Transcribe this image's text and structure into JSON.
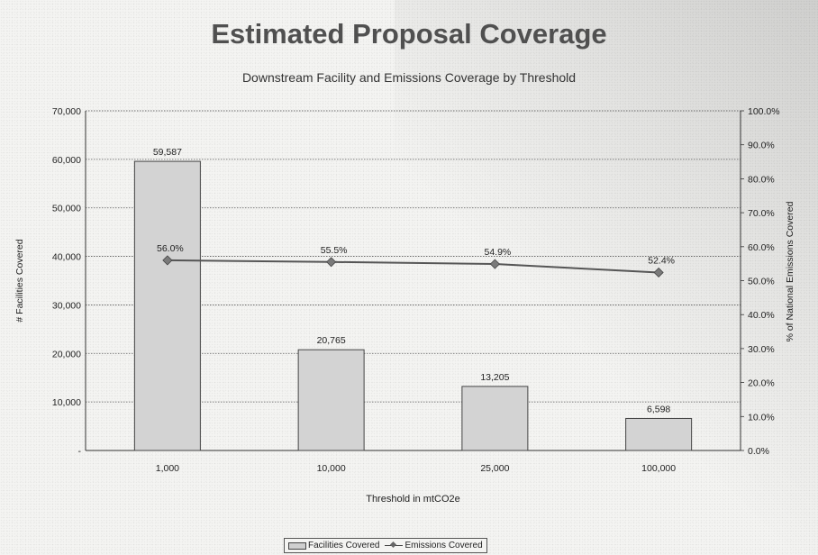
{
  "chart_data": {
    "type": "bar",
    "title": "Estimated Proposal Coverage",
    "subtitle": "Downstream Facility and Emissions Coverage by Threshold",
    "xlabel": "Threshold in mtCO2e",
    "ylabel": "# Facilities Covered",
    "y2label": "% of National Emissions Covered",
    "categories": [
      "1,000",
      "10,000",
      "25,000",
      "100,000"
    ],
    "ylim": [
      0,
      70000
    ],
    "y2lim": [
      0,
      100
    ],
    "yticks": [
      "-",
      "10,000",
      "20,000",
      "30,000",
      "40,000",
      "50,000",
      "60,000",
      "70,000"
    ],
    "y2ticks": [
      "0.0%",
      "10.0%",
      "20.0%",
      "30.0%",
      "40.0%",
      "50.0%",
      "60.0%",
      "70.0%",
      "80.0%",
      "90.0%",
      "100.0%"
    ],
    "grid": true,
    "legend_position": "bottom",
    "series": [
      {
        "name": "Facilities Covered",
        "type": "bar",
        "axis": "left",
        "values": [
          59587,
          20765,
          13205,
          6598
        ],
        "labels": [
          "59,587",
          "20,765",
          "13,205",
          "6,598"
        ]
      },
      {
        "name": "Emissions Covered",
        "type": "line",
        "axis": "right",
        "values": [
          56.0,
          55.5,
          54.9,
          52.4
        ],
        "labels": [
          "56.0%",
          "55.5%",
          "54.9%",
          "52.4%"
        ]
      }
    ],
    "colors": {
      "bar_fill": "#d3d3d3",
      "bar_stroke": "#444444",
      "line": "#555555",
      "marker": "#7a7a7a",
      "grid": "#555555"
    }
  }
}
